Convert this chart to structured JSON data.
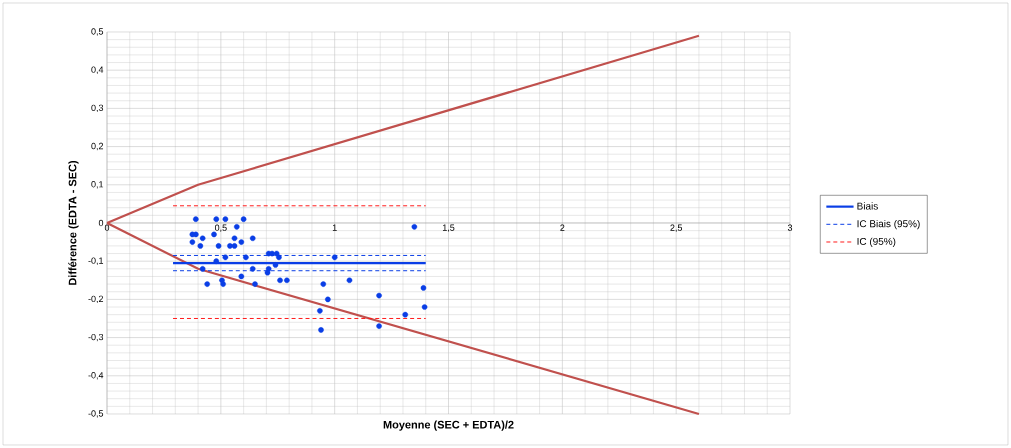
{
  "chart_data": {
    "type": "scatter",
    "xlabel": "Moyenne  (SEC + EDTA)/2",
    "ylabel": "Différence  (EDTA - SEC)",
    "xlim": [
      0,
      3
    ],
    "ylim": [
      -0.5,
      0.5
    ],
    "xticks": [
      0,
      {
        "value": 0.5,
        "label": "0,5"
      },
      1,
      {
        "value": 1.5,
        "label": "1,5"
      },
      2,
      {
        "value": 2.5,
        "label": "2,5"
      },
      3
    ],
    "yticks": [
      {
        "value": -0.5,
        "label": "-0,5"
      },
      {
        "value": -0.4,
        "label": "-0,4"
      },
      {
        "value": -0.3,
        "label": "-0,3"
      },
      {
        "value": -0.2,
        "label": "-0,2"
      },
      {
        "value": -0.1,
        "label": "-0,1"
      },
      0,
      {
        "value": 0.1,
        "label": "0,1"
      },
      {
        "value": 0.2,
        "label": "0,2"
      },
      {
        "value": 0.3,
        "label": "0,3"
      },
      {
        "value": 0.4,
        "label": "0,4"
      },
      {
        "value": 0.5,
        "label": "0,5"
      }
    ],
    "grid": true,
    "legend": "right",
    "series": [
      {
        "type": "line",
        "marker": "none",
        "color": "#c0504d",
        "x": [
          0,
          0.4,
          2.6
        ],
        "values": [
          0,
          0.1,
          0.49
        ]
      },
      {
        "type": "line",
        "marker": "none",
        "color": "#c0504d",
        "x": [
          0,
          0.4,
          2.6
        ],
        "values": [
          0,
          -0.12,
          -0.5
        ]
      },
      {
        "marker": "circle",
        "color": "#0a3ee6",
        "x": [
          0.39,
          0.48,
          0.52,
          0.6,
          0.57,
          1.35,
          0.375,
          0.39,
          0.47,
          0.42,
          0.375,
          0.56,
          0.59,
          0.64,
          0.41,
          0.49,
          0.54,
          0.56,
          0.52,
          0.61,
          0.48,
          0.71,
          0.725,
          0.745,
          0.755,
          1.0,
          0.74,
          0.71,
          0.64,
          0.42,
          0.705,
          0.59,
          0.505,
          0.76,
          0.79,
          1.065,
          0.44,
          0.51,
          0.65,
          0.95,
          1.39,
          1.195,
          0.97,
          0.935,
          1.31,
          1.395,
          1.195,
          0.94
        ],
        "values": [
          0.01,
          0.01,
          0.01,
          0.01,
          -0.01,
          -0.01,
          -0.03,
          -0.03,
          -0.03,
          -0.04,
          -0.05,
          -0.04,
          -0.05,
          -0.04,
          -0.06,
          -0.06,
          -0.06,
          -0.06,
          -0.09,
          -0.09,
          -0.1,
          -0.08,
          -0.08,
          -0.08,
          -0.09,
          -0.09,
          -0.11,
          -0.12,
          -0.12,
          -0.12,
          -0.13,
          -0.14,
          -0.15,
          -0.15,
          -0.15,
          -0.15,
          -0.16,
          -0.16,
          -0.16,
          -0.16,
          -0.17,
          -0.19,
          -0.2,
          -0.23,
          -0.24,
          -0.22,
          -0.27,
          -0.28
        ]
      },
      {
        "type": "line",
        "name": "Biais",
        "color": "#0a3ee6",
        "line_style": "solid",
        "x": [
          0.29,
          1.4
        ],
        "values": [
          -0.105,
          -0.105
        ]
      },
      {
        "type": "line",
        "name": "IC Biais (95%)",
        "color": "#0a3ee6",
        "line_style": "dashed",
        "x": [
          0.29,
          1.4
        ],
        "values": [
          -0.085,
          -0.085
        ]
      },
      {
        "type": "line",
        "color": "#0a3ee6",
        "line_style": "dashed",
        "x": [
          0.29,
          1.4
        ],
        "values": [
          -0.125,
          -0.125
        ]
      },
      {
        "type": "line",
        "name": "IC (95%)",
        "color": "#ff1a1a",
        "line_style": "dashed",
        "x": [
          0.29,
          1.4
        ],
        "values": [
          0.045,
          0.045
        ]
      },
      {
        "type": "line",
        "color": "#ff1a1a",
        "line_style": "dashed",
        "x": [
          0.29,
          1.4
        ],
        "values": [
          -0.25,
          -0.25
        ]
      }
    ]
  }
}
